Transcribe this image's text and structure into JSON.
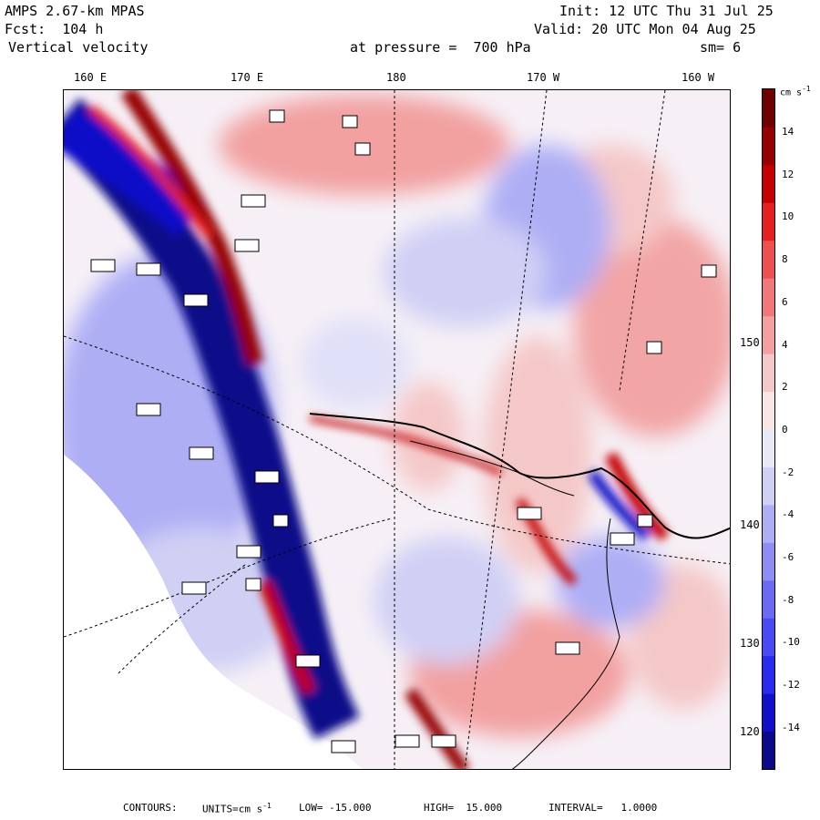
{
  "header": {
    "model": "AMPS 2.67-km MPAS",
    "fcst": "Fcst:  104 h",
    "field": "Vertical velocity",
    "init": "Init: 12 UTC Thu 31 Jul 25",
    "valid": "Valid: 20 UTC Mon 04 Aug 25",
    "pressure": "at pressure =  700 hPa",
    "smoothing": "sm= 6"
  },
  "map": {
    "longitude_labels": [
      "160 E",
      "170 E",
      "180",
      "170 W",
      "160 W"
    ],
    "latitude_labels": [
      "150 W",
      "140 W",
      "130 W",
      "120 W"
    ]
  },
  "colorbar": {
    "units": "cm s-1",
    "tick_labels": [
      "14",
      "12",
      "10",
      "8",
      "6",
      "4",
      "2",
      "0",
      "-2",
      "-4",
      "-6",
      "-8",
      "-10",
      "-12",
      "-14"
    ],
    "colors": [
      "#0a0a8a",
      "#1010c8",
      "#2a2af0",
      "#4a4af5",
      "#6a6af5",
      "#8e8ef2",
      "#aeaef5",
      "#d0d0f5",
      "#e8e8f8",
      "#fbe6e6",
      "#f5c8c8",
      "#f2a0a0",
      "#f07878",
      "#ee4f4f",
      "#e62020",
      "#c40000",
      "#960000",
      "#6e0000"
    ]
  },
  "footer": {
    "contours": "CONTOURS:",
    "units": "UNITS=cm s",
    "units_exp": "-1",
    "low": "LOW= -15.000",
    "high": "HIGH=  15.000",
    "interval": "INTERVAL=   1.0000"
  }
}
